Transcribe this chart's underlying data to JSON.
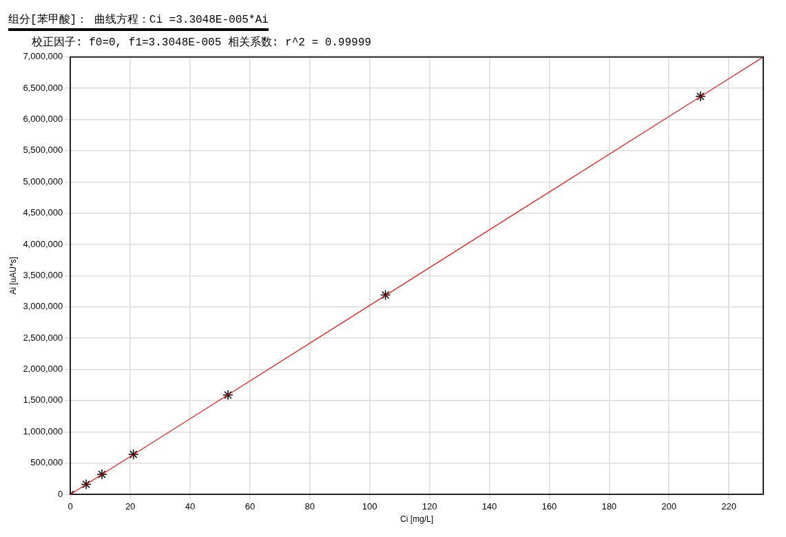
{
  "chart_data": {
    "type": "scatter",
    "title": "组分[苯甲酸]：  曲线方程：Ci =3.3048E-005*Ai",
    "subtitle": "校正因子: f0=0, f1=3.3048E-005  相关系数: r^2 = 0.99999",
    "xlabel": "Ci [mg/L]",
    "ylabel": "Ai [uAU*s]",
    "series": [
      {
        "type": "line",
        "color": "#ff0000",
        "x": [
          0,
          231.5
        ],
        "values": [
          0,
          7000000
        ]
      },
      {
        "type": "scatter",
        "color": "#000000",
        "marker": "cross",
        "x": [
          0,
          5.26,
          10.53,
          21.05,
          52.63,
          105.26,
          210.53
        ],
        "values": [
          0,
          160000,
          320000,
          640000,
          1590000,
          3190000,
          6370000
        ]
      }
    ],
    "xlim": [
      0,
      231.5
    ],
    "xticks": [
      0,
      20,
      40,
      60,
      80,
      100,
      120,
      140,
      160,
      180,
      200,
      220
    ],
    "ylim": [
      0,
      7000000
    ],
    "yticks": [
      0,
      {
        "value": 500000,
        "label": "500,000"
      },
      {
        "value": 1000000,
        "label": "1,000,000"
      },
      {
        "value": 1500000,
        "label": "1,500,000"
      },
      {
        "value": 2000000,
        "label": "2,000,000"
      },
      {
        "value": 2500000,
        "label": "2,500,000"
      },
      {
        "value": 3000000,
        "label": "3,000,000"
      },
      {
        "value": 3500000,
        "label": "3,500,000"
      },
      {
        "value": 4000000,
        "label": "4,000,000"
      },
      {
        "value": 4500000,
        "label": "4,500,000"
      },
      {
        "value": 5000000,
        "label": "5,000,000"
      },
      {
        "value": 5500000,
        "label": "5,500,000"
      },
      {
        "value": 6000000,
        "label": "6,000,000"
      },
      {
        "value": 6500000,
        "label": "6,500,000"
      },
      {
        "value": 7000000,
        "label": "7,000,000"
      }
    ],
    "grid": true,
    "legend": false
  }
}
